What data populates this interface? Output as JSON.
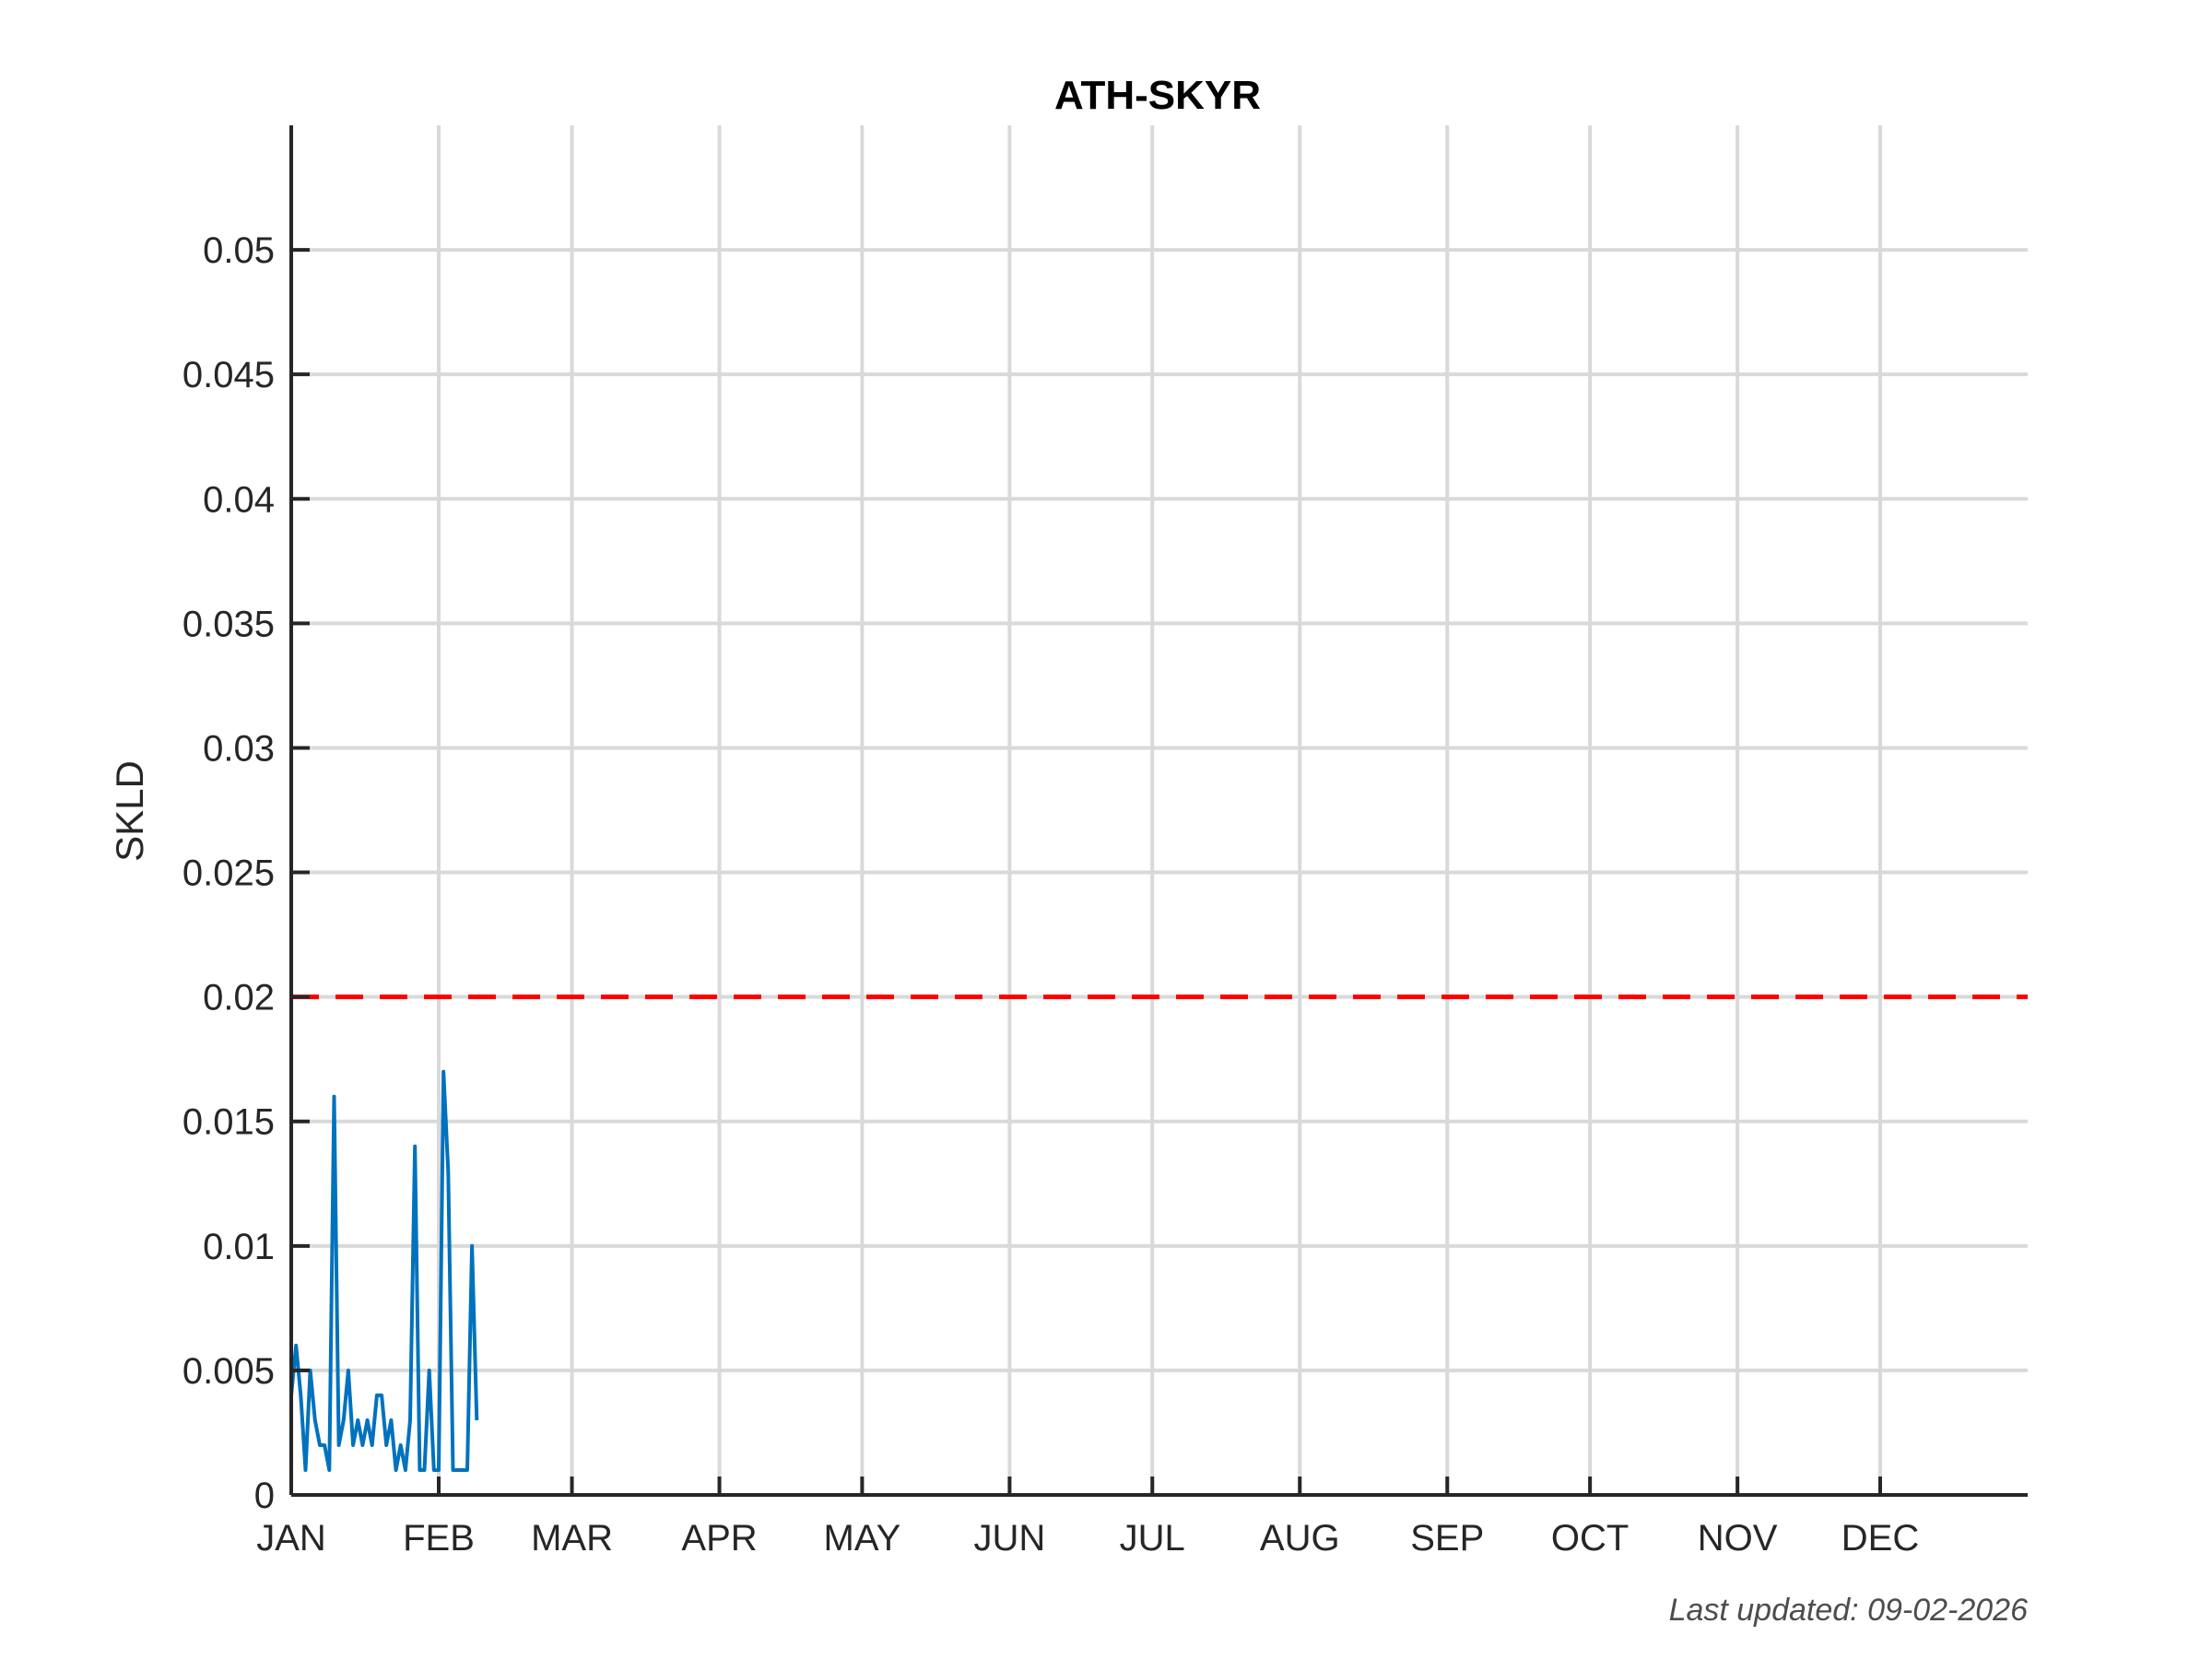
{
  "chart_data": {
    "type": "line",
    "title": "ATH-SKYR",
    "ylabel": "SKLD",
    "xlabel": "",
    "footer": "Last updated: 09-02-2026",
    "x_unit": "day-of-year",
    "xlim": [
      1,
      366
    ],
    "ylim": [
      0,
      0.055
    ],
    "grid": true,
    "x_ticks": [
      {
        "label": "JAN",
        "day": 1
      },
      {
        "label": "FEB",
        "day": 32
      },
      {
        "label": "MAR",
        "day": 60
      },
      {
        "label": "APR",
        "day": 91
      },
      {
        "label": "MAY",
        "day": 121
      },
      {
        "label": "JUN",
        "day": 152
      },
      {
        "label": "JUL",
        "day": 182
      },
      {
        "label": "AUG",
        "day": 213
      },
      {
        "label": "SEP",
        "day": 244
      },
      {
        "label": "OCT",
        "day": 274
      },
      {
        "label": "NOV",
        "day": 305
      },
      {
        "label": "DEC",
        "day": 335
      }
    ],
    "y_ticks": [
      {
        "label": "0",
        "value": 0
      },
      {
        "label": "0.005",
        "value": 0.005
      },
      {
        "label": "0.01",
        "value": 0.01
      },
      {
        "label": "0.015",
        "value": 0.015
      },
      {
        "label": "0.02",
        "value": 0.02
      },
      {
        "label": "0.025",
        "value": 0.025
      },
      {
        "label": "0.03",
        "value": 0.03
      },
      {
        "label": "0.035",
        "value": 0.035
      },
      {
        "label": "0.04",
        "value": 0.04
      },
      {
        "label": "0.045",
        "value": 0.045
      },
      {
        "label": "0.05",
        "value": 0.05
      }
    ],
    "threshold": {
      "value": 0.02,
      "color": "#ff0000",
      "style": "dashed"
    },
    "series": [
      {
        "color": "#0072bd",
        "x": [
          1,
          2,
          3,
          4,
          5,
          6,
          7,
          8,
          9,
          10,
          11,
          12,
          13,
          14,
          15,
          16,
          17,
          18,
          19,
          20,
          21,
          22,
          23,
          24,
          25,
          26,
          27,
          28,
          29,
          30,
          31,
          32,
          33,
          34,
          35,
          36,
          37,
          38,
          39,
          40
        ],
        "y": [
          0.004,
          0.006,
          0.004,
          0.001,
          0.005,
          0.003,
          0.002,
          0.002,
          0.001,
          0.016,
          0.002,
          0.003,
          0.005,
          0.002,
          0.003,
          0.002,
          0.003,
          0.002,
          0.004,
          0.004,
          0.002,
          0.003,
          0.001,
          0.002,
          0.001,
          0.003,
          0.014,
          0.001,
          0.001,
          0.005,
          0.001,
          0.001,
          0.017,
          0.013,
          0.001,
          0.001,
          0.001,
          0.001,
          0.01,
          0.003
        ]
      }
    ]
  }
}
